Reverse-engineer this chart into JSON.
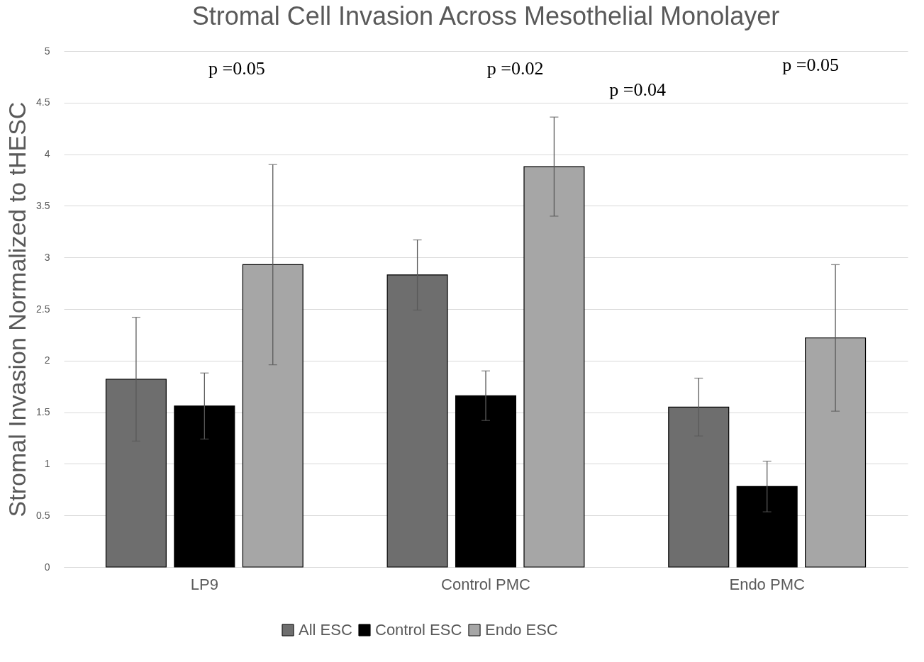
{
  "chart_data": {
    "type": "bar",
    "title": "Stromal Cell Invasion Across Mesothelial Monolayer",
    "ylabel": "Stromal Invasion Normalized to tHESC",
    "categories": [
      "LP9",
      "Control PMC",
      "Endo PMC"
    ],
    "series": [
      {
        "name": "All ESC",
        "color": "#6e6e6e",
        "values": [
          1.82,
          2.83,
          1.55
        ],
        "errors": [
          0.6,
          0.34,
          0.28
        ]
      },
      {
        "name": "Control ESC",
        "color": "#000000",
        "values": [
          1.56,
          1.66,
          0.78
        ],
        "errors": [
          0.32,
          0.24,
          0.245
        ]
      },
      {
        "name": "Endo ESC",
        "color": "#a6a6a6",
        "values": [
          2.93,
          3.88,
          2.22
        ],
        "errors": [
          0.97,
          0.48,
          0.71
        ]
      }
    ],
    "ylim": [
      0,
      5
    ],
    "yticks": [
      0,
      0.5,
      1,
      1.5,
      2,
      2.5,
      3,
      3.5,
      4,
      4.5,
      5
    ],
    "grid": "y",
    "legend": "bottom",
    "annotations": [
      "p =0.05",
      "p =0.02",
      "p =0.04",
      "p =0.05"
    ]
  }
}
